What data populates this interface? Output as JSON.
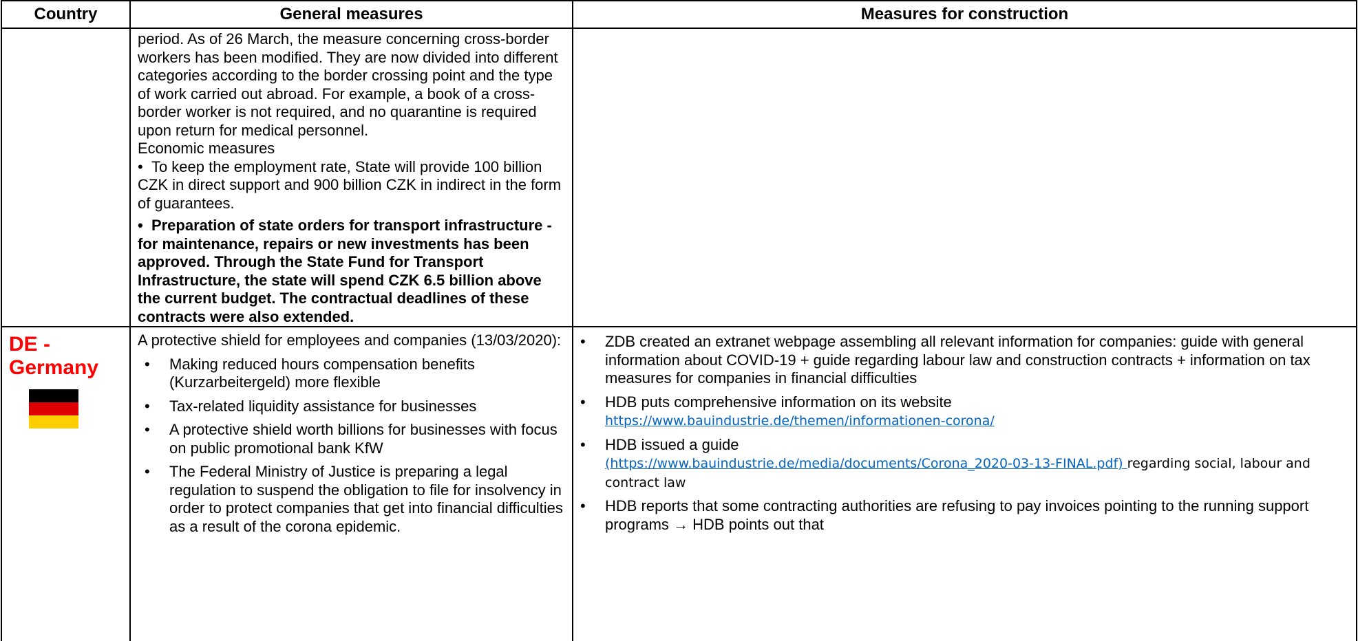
{
  "table": {
    "header": [
      "Country",
      "General measures",
      "Measures for construction"
    ],
    "rows": [
      {
        "general_paragraphs": [
          "period. As of 26 March, the measure concerning cross-border workers has been modified. They are now divided into different categories according to the border crossing point and the type of work carried out abroad. For example, a book of a cross-border worker is not required, and no quarantine is required upon return for medical personnel.",
          "Economic measures"
        ],
        "general_bullets": [
          "To keep the employment rate, State will provide 100 billion CZK in direct support and 900 billion CZK in indirect in the form of guarantees."
        ],
        "general_bold_bullets": [
          "Preparation of state orders for transport infrastructure - for maintenance, repairs or new investments has been approved. Through the State Fund for Transport Infrastructure, the state will spend CZK 6.5 billion above the current budget. The contractual deadlines of these contracts were also extended."
        ]
      },
      {
        "country": "DE - Germany",
        "general_intro": "A protective shield for employees and companies (13/03/2020):",
        "general_bullets": [
          "Making reduced hours compensation benefits (Kurzarbeitergeld) more flexible",
          "Tax-related liquidity assistance for businesses",
          "A protective shield worth billions for businesses with focus on public promotional bank KfW",
          "The Federal Ministry of Justice is preparing a legal regulation to suspend the obligation to file for insolvency in order to protect companies that get into financial difficulties as a result of the corona epidemic."
        ],
        "construction_bullets": [
          {
            "text": "ZDB created an extranet webpage assembling all relevant information for companies: guide with general information about COVID-19 + guide regarding labour law and construction contracts + information on tax measures for companies in financial difficulties"
          },
          {
            "text": "HDB puts comprehensive information on its website",
            "link": "https://www.bauindustrie.de/themen/informationen-corona/"
          },
          {
            "text": "HDB issued a guide",
            "link": "(https://www.bauindustrie.de/media/documents/Corona_2020-03-13-FINAL.pdf) ",
            "tail": "regarding social, labour and contract law"
          },
          {
            "text": "HDB reports that some contracting authorities are refusing to pay invoices pointing to the running support programs → HDB points out that"
          }
        ]
      }
    ]
  }
}
